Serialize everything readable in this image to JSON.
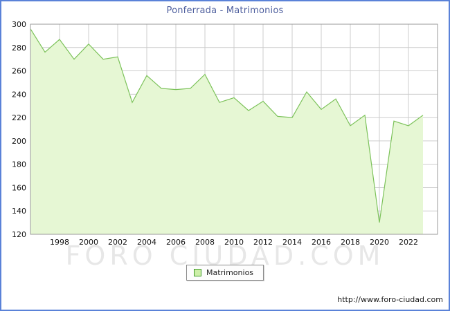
{
  "title": "Ponferrada - Matrimonios",
  "legend": {
    "label": "Matrimonios"
  },
  "watermark": "FORO CIUDAD.COM",
  "footer": {
    "url": "http://www.foro-ciudad.com"
  },
  "colors": {
    "frame_border": "#5a82d8",
    "title": "#4e5f9e",
    "area_fill": "#e6f7d4",
    "line": "#7cc25a",
    "legend_swatch_fill": "#cdefa8",
    "legend_swatch_border": "#3f9a28",
    "grid": "#cccccc",
    "axis": "#999999"
  },
  "chart_data": {
    "type": "area",
    "title": "Ponferrada - Matrimonios",
    "xlabel": "",
    "ylabel": "",
    "ylim": [
      120,
      300
    ],
    "xlim": [
      1996,
      2024
    ],
    "grid": true,
    "legend_position": "bottom",
    "y_ticks": [
      120,
      140,
      160,
      180,
      200,
      220,
      240,
      260,
      280,
      300
    ],
    "x_tick_labels": [
      1998,
      2000,
      2002,
      2004,
      2006,
      2008,
      2010,
      2012,
      2014,
      2016,
      2018,
      2020,
      2022
    ],
    "x": [
      1996,
      1997,
      1998,
      1999,
      2000,
      2001,
      2002,
      2003,
      2004,
      2005,
      2006,
      2007,
      2008,
      2009,
      2010,
      2011,
      2012,
      2013,
      2014,
      2015,
      2016,
      2017,
      2018,
      2019,
      2020,
      2021,
      2022,
      2023
    ],
    "series": [
      {
        "name": "Matrimonios",
        "values": [
          296,
          276,
          287,
          270,
          283,
          270,
          272,
          233,
          256,
          245,
          244,
          245,
          257,
          233,
          237,
          226,
          234,
          221,
          220,
          242,
          227,
          236,
          213,
          222,
          130,
          217,
          213,
          222
        ]
      }
    ]
  }
}
